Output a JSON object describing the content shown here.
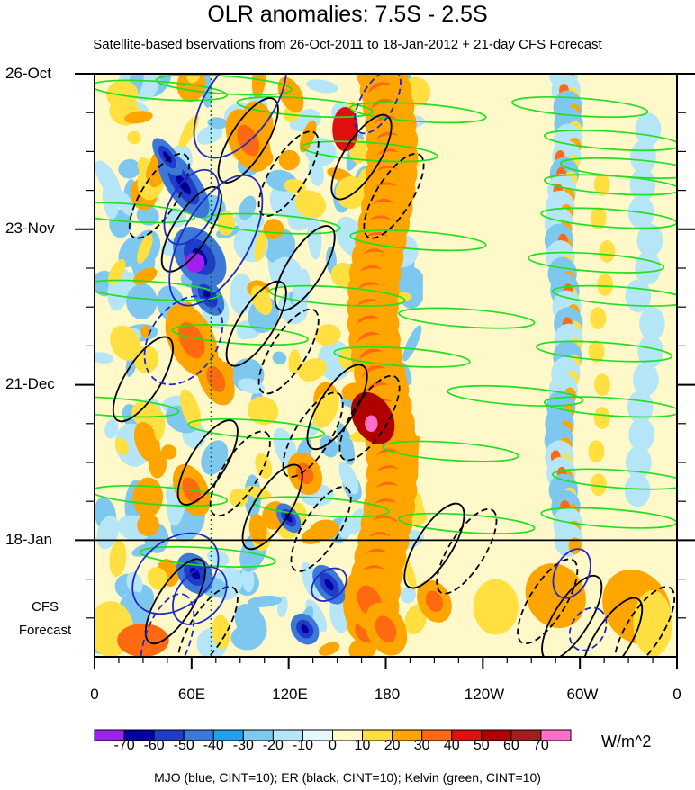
{
  "chart_data": {
    "type": "heatmap",
    "title": "OLR anomalies: 7.5S - 2.5S",
    "subtitle": "Satellite-based bservations from 26-Oct-2011 to 18-Jan-2012 + 21-day CFS Forecast",
    "x_tick_labels": [
      "0",
      "60E",
      "120E",
      "180",
      "120W",
      "60W",
      "0"
    ],
    "y_tick_labels": [
      "26-Oct",
      "23-Nov",
      "21-Dec",
      "18-Jan"
    ],
    "forecast_label_line1": "CFS",
    "forecast_label_line2": "Forecast",
    "colorbar_labels": [
      "-70",
      "-60",
      "-50",
      "-40",
      "-30",
      "-20",
      "-10",
      "0",
      "10",
      "20",
      "30",
      "40",
      "50",
      "60",
      "70"
    ],
    "colorbar_colors": [
      "#a020f0",
      "#0000a0",
      "#1e3cc8",
      "#3c78d8",
      "#20a0e8",
      "#7ec8f0",
      "#b4e6f8",
      "#e6f8ff",
      "#fff8c8",
      "#ffe040",
      "#ffa500",
      "#ff6a10",
      "#e01010",
      "#b00000",
      "#a01e1e",
      "#ff6ec8"
    ],
    "units": "W/m^2",
    "footer": "MJO (blue, CINT=10); ER (black, CINT=10); Kelvin (green, CINT=10)",
    "xlim_deg": [
      0,
      360
    ],
    "time_range_days": [
      0,
      105
    ],
    "forecast_start_day": 84,
    "y_tick_days": [
      0,
      28,
      56,
      84
    ]
  }
}
